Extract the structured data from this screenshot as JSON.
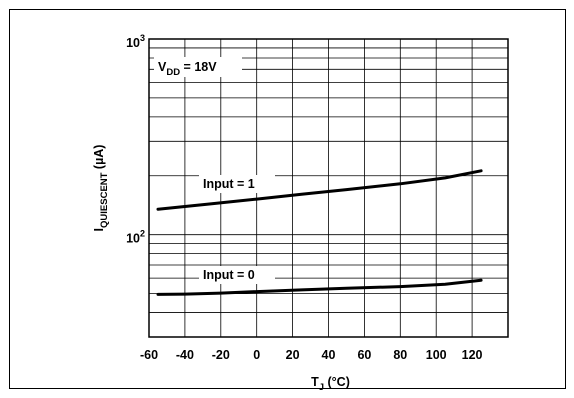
{
  "chart_data": {
    "type": "line",
    "xlabel": "T",
    "xlabel_sub": "J",
    "xlabel_unit": " (°C)",
    "ylabel": "I",
    "ylabel_sub": "QUIESCENT",
    "ylabel_unit": " (µA)",
    "yscale": "log",
    "xlim": [
      -60,
      140
    ],
    "ylim": [
      30,
      1000
    ],
    "x_ticks": [
      -60,
      -40,
      -20,
      0,
      20,
      40,
      60,
      80,
      100,
      120
    ],
    "y_tick_labels": [
      {
        "value": 1000,
        "base": "10",
        "exp": "3"
      },
      {
        "value": 100,
        "base": "10",
        "exp": "2"
      }
    ],
    "grid": true,
    "annotations": {
      "vdd": {
        "main": "V",
        "sub": "DD",
        "rest": " = 18V"
      }
    },
    "series": [
      {
        "name": "Input = 1",
        "x": [
          -55,
          -25,
          0,
          25,
          50,
          80,
          105,
          125
        ],
        "y": [
          135,
          144,
          152,
          161,
          170,
          182,
          195,
          212
        ]
      },
      {
        "name": "Input = 0",
        "x": [
          -55,
          -40,
          -20,
          0,
          25,
          50,
          80,
          105,
          125
        ],
        "y": [
          49.5,
          49.7,
          50.3,
          51.2,
          52.2,
          53.2,
          54.3,
          55.8,
          58.5
        ]
      }
    ]
  }
}
